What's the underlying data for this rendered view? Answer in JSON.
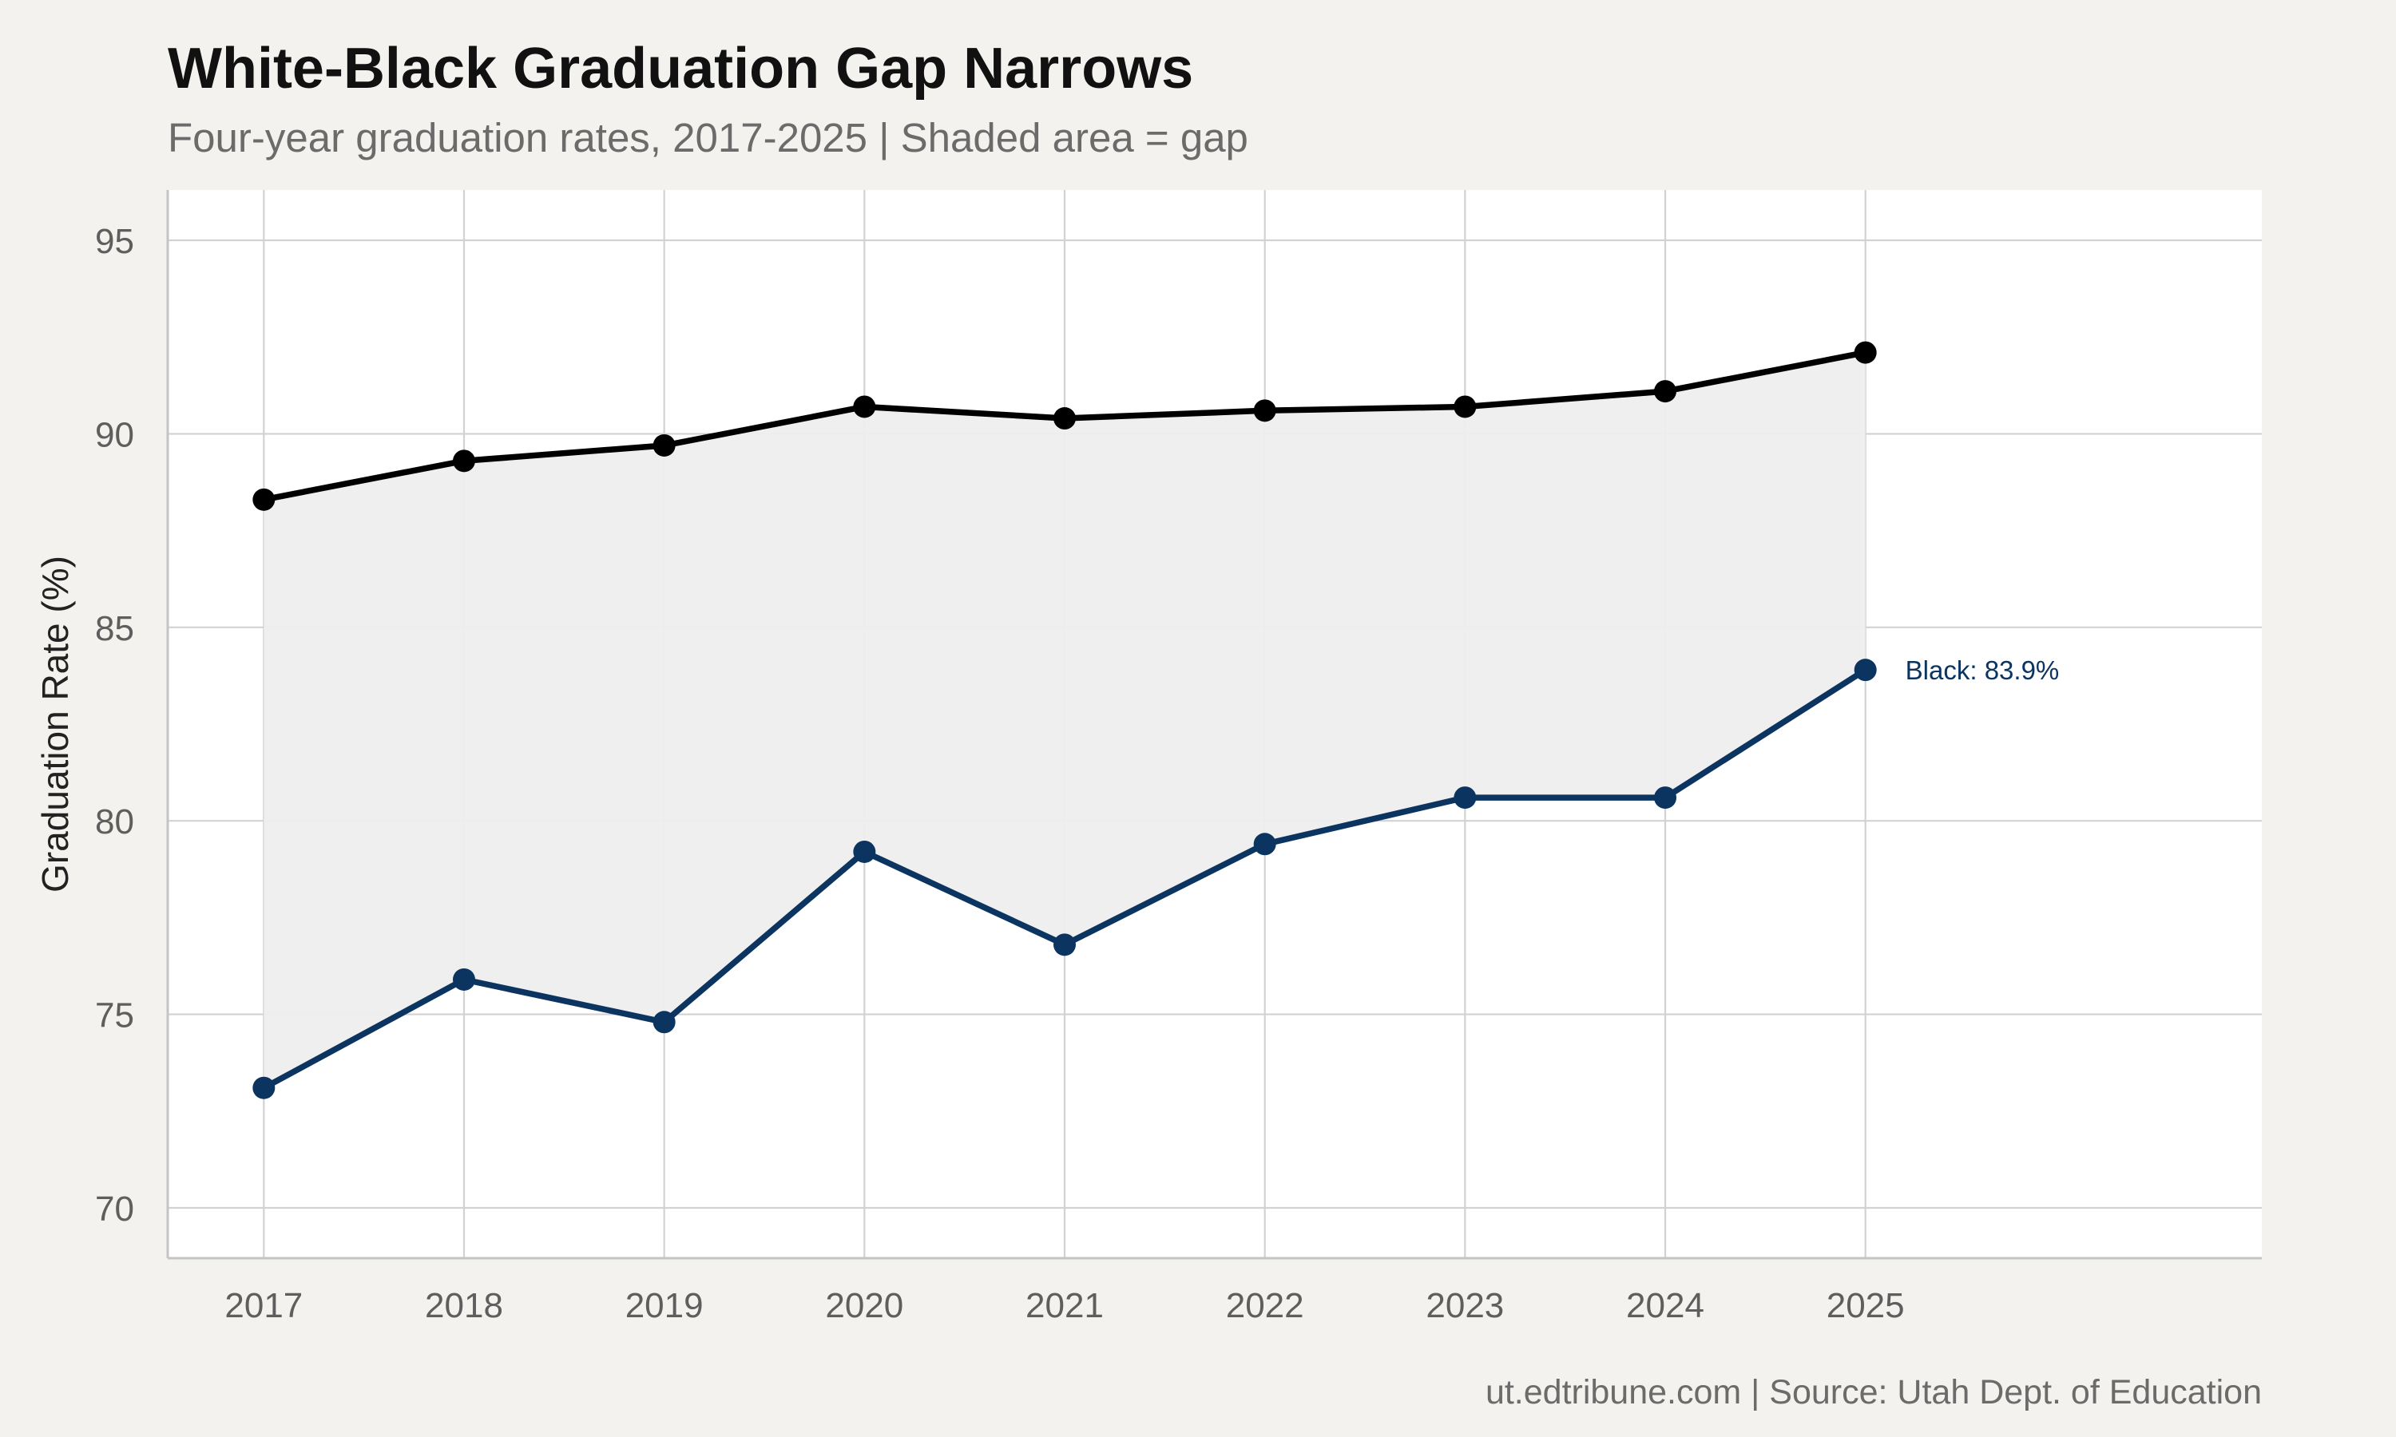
{
  "chart_data": {
    "type": "line",
    "title": "White-Black Graduation Gap Narrows",
    "subtitle": "Four-year graduation rates, 2017-2025 | Shaded area = gap",
    "xlabel": "",
    "ylabel": "Graduation Rate (%)",
    "caption": "ut.edtribune.com | Source: Utah Dept. of Education",
    "x": [
      2017,
      2018,
      2019,
      2020,
      2021,
      2022,
      2023,
      2024,
      2025
    ],
    "x_tick_labels": [
      "2017",
      "2018",
      "2019",
      "2020",
      "2021",
      "2022",
      "2023",
      "2024",
      "2025"
    ],
    "xlim": [
      2016.52,
      2026.98
    ],
    "ylim": [
      68.7,
      96.3
    ],
    "y_ticks": [
      70,
      75,
      80,
      85,
      90,
      95
    ],
    "y_tick_labels": [
      "70",
      "75",
      "80",
      "85",
      "90",
      "95"
    ],
    "grid": true,
    "shaded_gap": true,
    "series": [
      {
        "color": "#000000",
        "values": [
          88.3,
          89.3,
          89.7,
          90.7,
          90.4,
          90.6,
          90.7,
          91.1,
          92.1
        ]
      },
      {
        "color": "#0b3460",
        "values": [
          73.1,
          75.9,
          74.8,
          79.2,
          76.8,
          79.4,
          80.6,
          80.6,
          83.9
        ],
        "end_label": "Black: 83.9%"
      }
    ],
    "colors": {
      "background": "#f4f2ee",
      "panel": "#ffffff",
      "grid": "#d2d2d2",
      "gap_fill": "#eeeeee",
      "axis_line": "#c4c4c4"
    }
  }
}
